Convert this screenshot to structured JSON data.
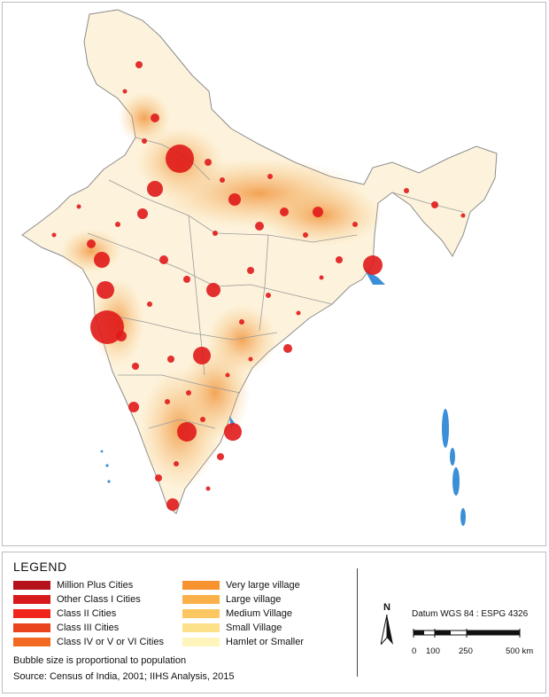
{
  "legend": {
    "title": "LEGEND",
    "items": [
      {
        "label": "Million Plus Cities",
        "color": "#b5121b"
      },
      {
        "label": "Other Class I Cities",
        "color": "#d7191c"
      },
      {
        "label": "Class II Cities",
        "color": "#f0261c"
      },
      {
        "label": "Class III Cities",
        "color": "#e8451e"
      },
      {
        "label": "Class IV or V or VI Cities",
        "color": "#f26a21"
      },
      {
        "label": "Very large village",
        "color": "#f7922e"
      },
      {
        "label": "Large village",
        "color": "#fbb04a"
      },
      {
        "label": "Medium Village",
        "color": "#fcc660"
      },
      {
        "label": "Small Village",
        "color": "#fde08a"
      },
      {
        "label": "Hamlet or Smaller",
        "color": "#fef4bc"
      }
    ],
    "bubble_note": "Bubble size is proportional to population",
    "source": "Source: Census of India, 2001; IIHS Analysis, 2015"
  },
  "map_info": {
    "north_label": "N",
    "datum": "Datum WGS 84 : ESPG 4326",
    "scale_ticks": [
      "0",
      "100",
      "250",
      "500 km"
    ]
  },
  "colors": {
    "land": "#fdf3dc",
    "dense_settlement": "#f7c47a",
    "city": "#e01a1a",
    "water": "#3b8fd8",
    "boundary": "#8c8c8c"
  }
}
